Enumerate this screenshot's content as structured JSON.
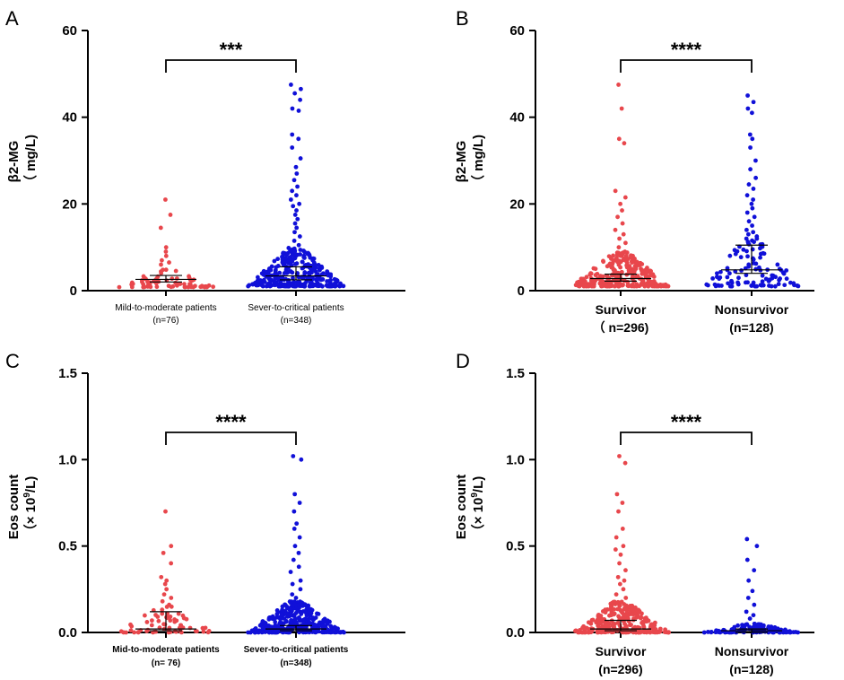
{
  "figure": {
    "colors": {
      "group1": "#e8474c",
      "group2": "#1010d8",
      "axis": "#000000"
    },
    "panels": [
      {
        "letter": "A",
        "ylabel_line1": "β2-MG",
        "ylabel_line2": "（ mg/L)",
        "ylabel_sup": "",
        "ylabel_tail": "",
        "significance": "***",
        "ylim": [
          0,
          60
        ],
        "yticks": [
          "0",
          "20",
          "40",
          "60"
        ]
      },
      {
        "letter": "B",
        "ylabel_line1": "β2-MG",
        "ylabel_line2": "（ mg/L)",
        "ylabel_sup": "",
        "ylabel_tail": "",
        "significance": "****",
        "ylim": [
          0,
          60
        ],
        "yticks": [
          "0",
          "20",
          "40",
          "60"
        ]
      },
      {
        "letter": "C",
        "ylabel_line1": "Eos count",
        "ylabel_line2": "（× 10",
        "ylabel_sup": "9",
        "ylabel_tail": "/L)",
        "significance": "****",
        "ylim": [
          0,
          1.5
        ],
        "yticks": [
          "0.0",
          "0.5",
          "1.0",
          "1.5"
        ]
      },
      {
        "letter": "D",
        "ylabel_line1": "Eos count",
        "ylabel_line2": "（× 10",
        "ylabel_sup": "9",
        "ylabel_tail": "/L)",
        "significance": "****",
        "ylim": [
          0,
          1.5
        ],
        "yticks": [
          "0.0",
          "0.5",
          "1.0",
          "1.5"
        ]
      }
    ],
    "labels": {
      "A": [
        [
          "Mild-to-moderate patients",
          "(n=76)"
        ],
        [
          "Sever-to-critical patients",
          "(n=348)"
        ]
      ],
      "B": [
        [
          "Survivor",
          "（ n=296)"
        ],
        [
          "Nonsurvivor",
          "(n=128)"
        ]
      ],
      "C": [
        [
          "Mid-to-moderate patients",
          "(n= 76)"
        ],
        [
          "Sever-to-critical patients",
          "(n=348)"
        ]
      ],
      "D": [
        [
          "Survivor",
          "(n=296)"
        ],
        [
          "Nonsurvivor",
          "(n=128)"
        ]
      ]
    }
  },
  "chart_data": [
    {
      "panel": "A",
      "type": "scatter",
      "ylabel": "β2-MG （ mg/L)",
      "ylim": [
        0,
        60
      ],
      "significance": "***",
      "categories": [
        "Mild-to-moderate patients (n=76)",
        "Sever-to-critical patients (n=348)"
      ],
      "series": [
        {
          "name": "Mild-to-moderate patients",
          "n": 76,
          "median": 2.6,
          "whisker_low": 2.0,
          "whisker_high": 3.5,
          "highlight_values": [
            21.0,
            17.5,
            14.5,
            10.0,
            9.0,
            8.0,
            7.0,
            6.5,
            6.0
          ],
          "bulk_min": 0.8,
          "bulk_max": 5.0
        },
        {
          "name": "Sever-to-critical patients",
          "n": 348,
          "median": 3.4,
          "whisker_low": 2.5,
          "whisker_high": 5.5,
          "highlight_values": [
            47.5,
            46.5,
            45.5,
            44.0,
            42.0,
            41.5,
            36.0,
            35.0,
            33.0,
            30.5,
            28.5,
            27.0,
            25.5,
            24.0,
            23.0,
            22.0,
            21.0,
            20.0,
            19.5,
            18.5,
            17.5,
            16.5,
            15.5,
            14.5,
            13.5,
            12.5,
            11.5,
            10.5
          ],
          "bulk_min": 1.0,
          "bulk_max": 10.0
        }
      ]
    },
    {
      "panel": "B",
      "type": "scatter",
      "ylabel": "β2-MG （ mg/L)",
      "ylim": [
        0,
        60
      ],
      "significance": "****",
      "categories": [
        "Survivor (n=296)",
        "Nonsurvivor (n=128)"
      ],
      "series": [
        {
          "name": "Survivor",
          "n": 296,
          "median": 2.8,
          "whisker_low": 2.2,
          "whisker_high": 3.8,
          "highlight_values": [
            47.5,
            42.0,
            35.0,
            34.0,
            23.0,
            21.5,
            20.0,
            18.5,
            17.0,
            15.5,
            14.0,
            13.0,
            12.0,
            11.0,
            10.0
          ],
          "bulk_min": 1.0,
          "bulk_max": 9.0
        },
        {
          "name": "Nonsurvivor",
          "n": 128,
          "median": 4.8,
          "whisker_low": 4.0,
          "whisker_high": 10.5,
          "highlight_values": [
            45.0,
            43.5,
            42.0,
            41.0,
            36.0,
            35.0,
            33.0,
            30.0,
            28.0,
            26.0,
            24.5,
            23.5,
            22.0,
            21.0,
            20.0,
            19.0,
            18.0,
            17.0,
            16.0,
            15.0,
            14.0,
            13.5,
            13.0,
            12.5,
            12.0
          ],
          "bulk_min": 1.0,
          "bulk_max": 12.0
        }
      ]
    },
    {
      "panel": "C",
      "type": "scatter",
      "ylabel": "Eos count （× 10^9/L)",
      "ylim": [
        0,
        1.5
      ],
      "significance": "****",
      "categories": [
        "Mid-to-moderate patients (n= 76)",
        "Sever-to-critical patients (n=348)"
      ],
      "series": [
        {
          "name": "Mid-to-moderate patients",
          "n": 76,
          "median": 0.02,
          "whisker_low": 0.01,
          "whisker_high": 0.12,
          "highlight_values": [
            0.7,
            0.5,
            0.46,
            0.4,
            0.32,
            0.3,
            0.28,
            0.25,
            0.22,
            0.2,
            0.18,
            0.16
          ],
          "bulk_min": 0.0,
          "bulk_max": 0.15
        },
        {
          "name": "Sever-to-critical patients",
          "n": 348,
          "median": 0.02,
          "whisker_low": 0.01,
          "whisker_high": 0.04,
          "highlight_values": [
            1.02,
            1.0,
            0.8,
            0.75,
            0.7,
            0.63,
            0.6,
            0.55,
            0.5,
            0.46,
            0.42,
            0.38,
            0.35,
            0.3,
            0.28,
            0.25,
            0.22,
            0.2
          ],
          "bulk_min": 0.0,
          "bulk_max": 0.18
        }
      ]
    },
    {
      "panel": "D",
      "type": "scatter",
      "ylabel": "Eos count （× 10^9/L)",
      "ylim": [
        0,
        1.5
      ],
      "significance": "****",
      "categories": [
        "Survivor (n=296)",
        "Nonsurvivor (n=128)"
      ],
      "series": [
        {
          "name": "Survivor",
          "n": 296,
          "median": 0.02,
          "whisker_low": 0.01,
          "whisker_high": 0.07,
          "highlight_values": [
            1.02,
            0.98,
            0.8,
            0.75,
            0.7,
            0.6,
            0.55,
            0.5,
            0.48,
            0.45,
            0.4,
            0.36,
            0.32,
            0.3,
            0.28,
            0.25,
            0.22,
            0.2
          ],
          "bulk_min": 0.0,
          "bulk_max": 0.18
        },
        {
          "name": "Nonsurvivor",
          "n": 128,
          "median": 0.01,
          "whisker_low": 0.0,
          "whisker_high": 0.02,
          "highlight_values": [
            0.54,
            0.5,
            0.42,
            0.36,
            0.3,
            0.24,
            0.2,
            0.16,
            0.12,
            0.1,
            0.08
          ],
          "bulk_min": 0.0,
          "bulk_max": 0.05
        }
      ]
    }
  ]
}
